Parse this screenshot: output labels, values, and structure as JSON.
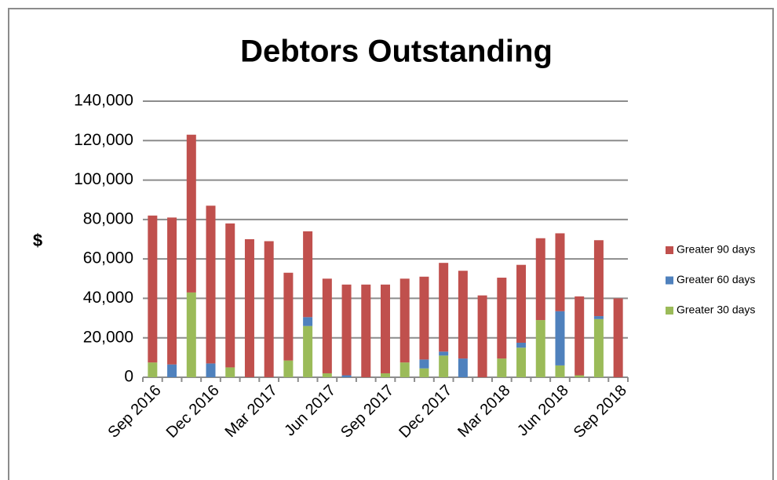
{
  "chart_data": {
    "type": "stacked_bar",
    "title": "Debtors Outstanding",
    "y_label": "$",
    "categories": [
      "Sep 2016",
      null,
      null,
      "Dec 2016",
      null,
      null,
      "Mar 2017",
      null,
      null,
      "Jun 2017",
      null,
      null,
      "Sep 2017",
      null,
      null,
      "Dec 2017",
      null,
      null,
      "Mar 2018",
      null,
      null,
      "Jun 2018",
      null,
      null,
      "Sep 2018"
    ],
    "series": [
      {
        "name": "Greater 30 days",
        "color": "#9bbb59",
        "values": [
          7500,
          0,
          43000,
          0,
          5000,
          0,
          0,
          8500,
          26000,
          2000,
          0,
          0,
          2000,
          7500,
          4500,
          11000,
          0,
          0,
          9500,
          15000,
          29000,
          6000,
          1000,
          29500,
          0
        ]
      },
      {
        "name": "Greater 60 days",
        "color": "#4f81bd",
        "values": [
          0,
          6500,
          0,
          7000,
          0,
          0,
          0,
          0,
          4500,
          0,
          1000,
          0,
          0,
          0,
          4500,
          2000,
          9500,
          0,
          0,
          2500,
          0,
          27500,
          0,
          1500,
          0
        ]
      },
      {
        "name": "Greater 90 days",
        "color": "#c0504d",
        "values": [
          74500,
          74500,
          80000,
          80000,
          73000,
          70000,
          69000,
          44500,
          43500,
          48000,
          46000,
          47000,
          45000,
          42500,
          42000,
          45000,
          44500,
          41500,
          41000,
          39500,
          41500,
          39500,
          40000,
          38500,
          40000
        ]
      }
    ],
    "ylim": [
      0,
      140000
    ],
    "yticks": [
      0,
      {
        "value": 20000,
        "label": "20,000"
      },
      {
        "value": 40000,
        "label": "40,000"
      },
      {
        "value": 60000,
        "label": "60,000"
      },
      {
        "value": 80000,
        "label": "80,000"
      },
      {
        "value": 100000,
        "label": "100,000"
      },
      {
        "value": 120000,
        "label": "120,000"
      },
      {
        "value": 140000,
        "label": "140,000"
      }
    ],
    "grid": true,
    "legend": "right"
  }
}
